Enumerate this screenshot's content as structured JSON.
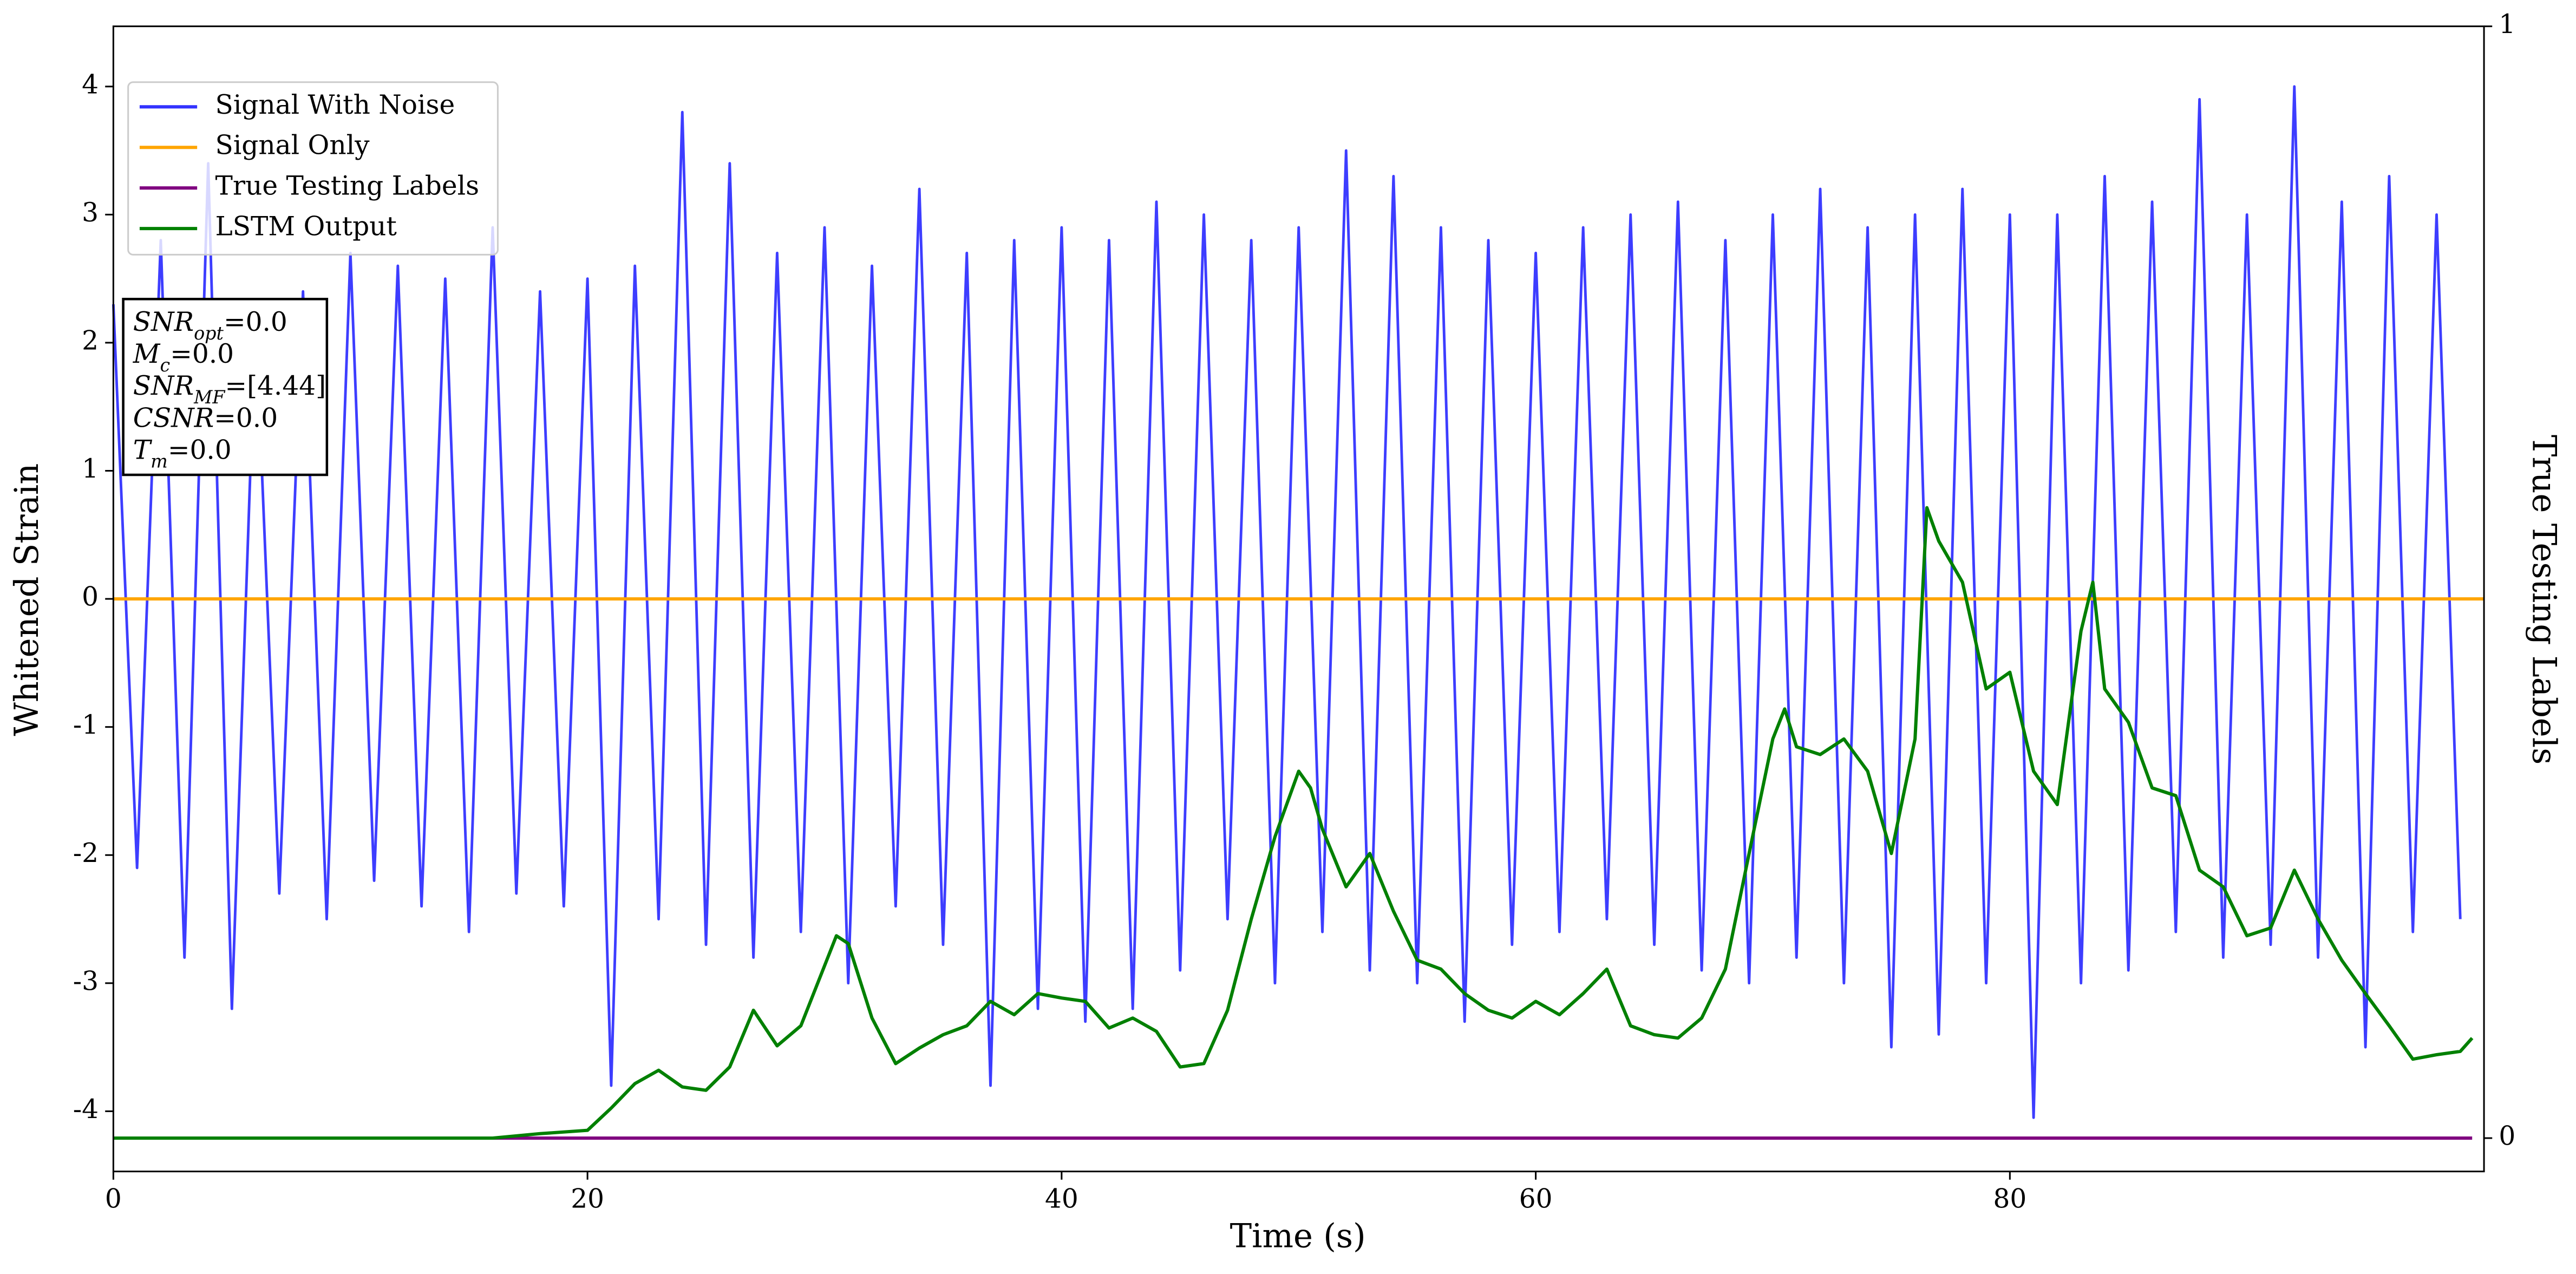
{
  "chart_data": {
    "type": "line",
    "xlabel": "Time (s)",
    "ylabel": "Whitened Strain",
    "y2label": "True Testing Labels",
    "xlim": [
      0,
      100
    ],
    "xticks": [
      0,
      20,
      40,
      60,
      80
    ],
    "ylim": [
      -4.47,
      4.47
    ],
    "yticks": [
      -4,
      -3,
      -2,
      -1,
      0,
      1,
      2,
      3,
      4
    ],
    "y2lim": [
      -0.03,
      1.0
    ],
    "y2ticks": [
      0,
      1
    ],
    "legend": "upper left",
    "annotation": [
      {
        "symbol": "SNR",
        "sub": "opt",
        "text": "=0.0"
      },
      {
        "symbol": "M",
        "sub": "c",
        "text": "=0.0"
      },
      {
        "symbol": "SNR",
        "sub": "MF",
        "text": "=[4.44]"
      },
      {
        "symbol": "CSNR",
        "text": "=0.0"
      },
      {
        "symbol": "T",
        "sub": "m",
        "text": "=0.0"
      }
    ],
    "series": [
      {
        "name": "Signal With Noise",
        "color": "#3333ff",
        "x": [
          0,
          1,
          2,
          3,
          4,
          5,
          6,
          7,
          8,
          9,
          10,
          11,
          12,
          13,
          14,
          15,
          16,
          17,
          18,
          19,
          20,
          21,
          22,
          23,
          24,
          25,
          26,
          27,
          28,
          29,
          30,
          31,
          32,
          33,
          34,
          35,
          36,
          37,
          38,
          39,
          40,
          41,
          42,
          43,
          44,
          45,
          46,
          47,
          48,
          49,
          50,
          51,
          52,
          53,
          54,
          55,
          56,
          57,
          58,
          59,
          60,
          61,
          62,
          63,
          64,
          65,
          66,
          67,
          68,
          69,
          70,
          71,
          72,
          73,
          74,
          75,
          76,
          77,
          78,
          79,
          80,
          81,
          82,
          83,
          84,
          85,
          86,
          87,
          88,
          89,
          90,
          91,
          92,
          93,
          94,
          95,
          96,
          97,
          98,
          99
        ],
        "values": [
          2.3,
          -2.1,
          2.8,
          -2.8,
          3.4,
          -3.2,
          2.2,
          -2.3,
          2.4,
          -2.5,
          2.7,
          -2.2,
          2.6,
          -2.4,
          2.5,
          -2.6,
          2.9,
          -2.3,
          2.4,
          -2.4,
          2.5,
          -3.8,
          2.6,
          -2.5,
          3.8,
          -2.7,
          3.4,
          -2.8,
          2.7,
          -2.6,
          2.9,
          -3.0,
          2.6,
          -2.4,
          3.2,
          -2.7,
          2.7,
          -3.8,
          2.8,
          -3.2,
          2.9,
          -3.3,
          2.8,
          -3.2,
          3.1,
          -2.9,
          3.0,
          -2.5,
          2.8,
          -3.0,
          2.9,
          -2.6,
          3.5,
          -2.9,
          3.3,
          -3.0,
          2.9,
          -3.3,
          2.8,
          -2.7,
          2.7,
          -2.6,
          2.9,
          -2.5,
          3.0,
          -2.7,
          3.1,
          -2.9,
          2.8,
          -3.0,
          3.0,
          -2.8,
          3.2,
          -3.0,
          2.9,
          -3.5,
          3.0,
          -3.4,
          3.2,
          -3.0,
          3.0,
          -4.05,
          3.0,
          -3.0,
          3.3,
          -2.9,
          3.1,
          -2.6,
          3.9,
          -2.8,
          3.0,
          -2.7,
          4.0,
          -2.8,
          3.1,
          -3.5,
          3.3,
          -2.6,
          3.0,
          -2.5
        ]
      },
      {
        "name": "Signal Only",
        "color": "#ffa500",
        "x": [
          0,
          100
        ],
        "values": [
          0,
          0
        ]
      },
      {
        "name": "True Testing Labels",
        "color": "#800080",
        "axis": "y2",
        "x": [
          0,
          99.5
        ],
        "values": [
          0,
          0
        ]
      },
      {
        "name": "LSTM Output",
        "color": "#008000",
        "axis": "y2",
        "x": [
          0,
          16,
          18,
          20,
          21,
          22,
          23,
          24,
          25,
          26,
          27,
          28,
          29,
          30,
          30.5,
          31,
          32,
          33,
          34,
          35,
          36,
          37,
          38,
          39,
          40,
          41,
          42,
          43,
          44,
          45,
          46,
          47,
          48,
          49,
          50,
          50.5,
          51,
          52,
          53,
          54,
          55,
          56,
          57,
          58,
          59,
          60,
          61,
          62,
          63,
          64,
          65,
          66,
          67,
          68,
          69,
          70,
          70.5,
          71,
          72,
          73,
          74,
          75,
          76,
          76.5,
          77,
          78,
          79,
          80,
          81,
          82,
          83,
          83.5,
          84,
          85,
          86,
          87,
          88,
          89,
          90,
          91,
          92,
          93,
          94,
          95,
          96,
          97,
          98,
          99,
          99.5
        ],
        "values": [
          0,
          0,
          0.004,
          0.007,
          0.027,
          0.049,
          0.061,
          0.046,
          0.043,
          0.064,
          0.115,
          0.083,
          0.101,
          0.155,
          0.182,
          0.175,
          0.108,
          0.067,
          0.081,
          0.093,
          0.101,
          0.123,
          0.111,
          0.13,
          0.126,
          0.123,
          0.099,
          0.108,
          0.096,
          0.064,
          0.067,
          0.115,
          0.197,
          0.271,
          0.33,
          0.315,
          0.278,
          0.226,
          0.256,
          0.204,
          0.16,
          0.152,
          0.13,
          0.115,
          0.108,
          0.123,
          0.111,
          0.13,
          0.152,
          0.101,
          0.093,
          0.09,
          0.108,
          0.152,
          0.256,
          0.359,
          0.386,
          0.352,
          0.345,
          0.359,
          0.33,
          0.256,
          0.359,
          0.567,
          0.537,
          0.5,
          0.404,
          0.419,
          0.33,
          0.3,
          0.456,
          0.5,
          0.404,
          0.374,
          0.315,
          0.308,
          0.241,
          0.226,
          0.182,
          0.189,
          0.241,
          0.197,
          0.16,
          0.13,
          0.101,
          0.071,
          0.075,
          0.078,
          0.09
        ]
      }
    ]
  }
}
